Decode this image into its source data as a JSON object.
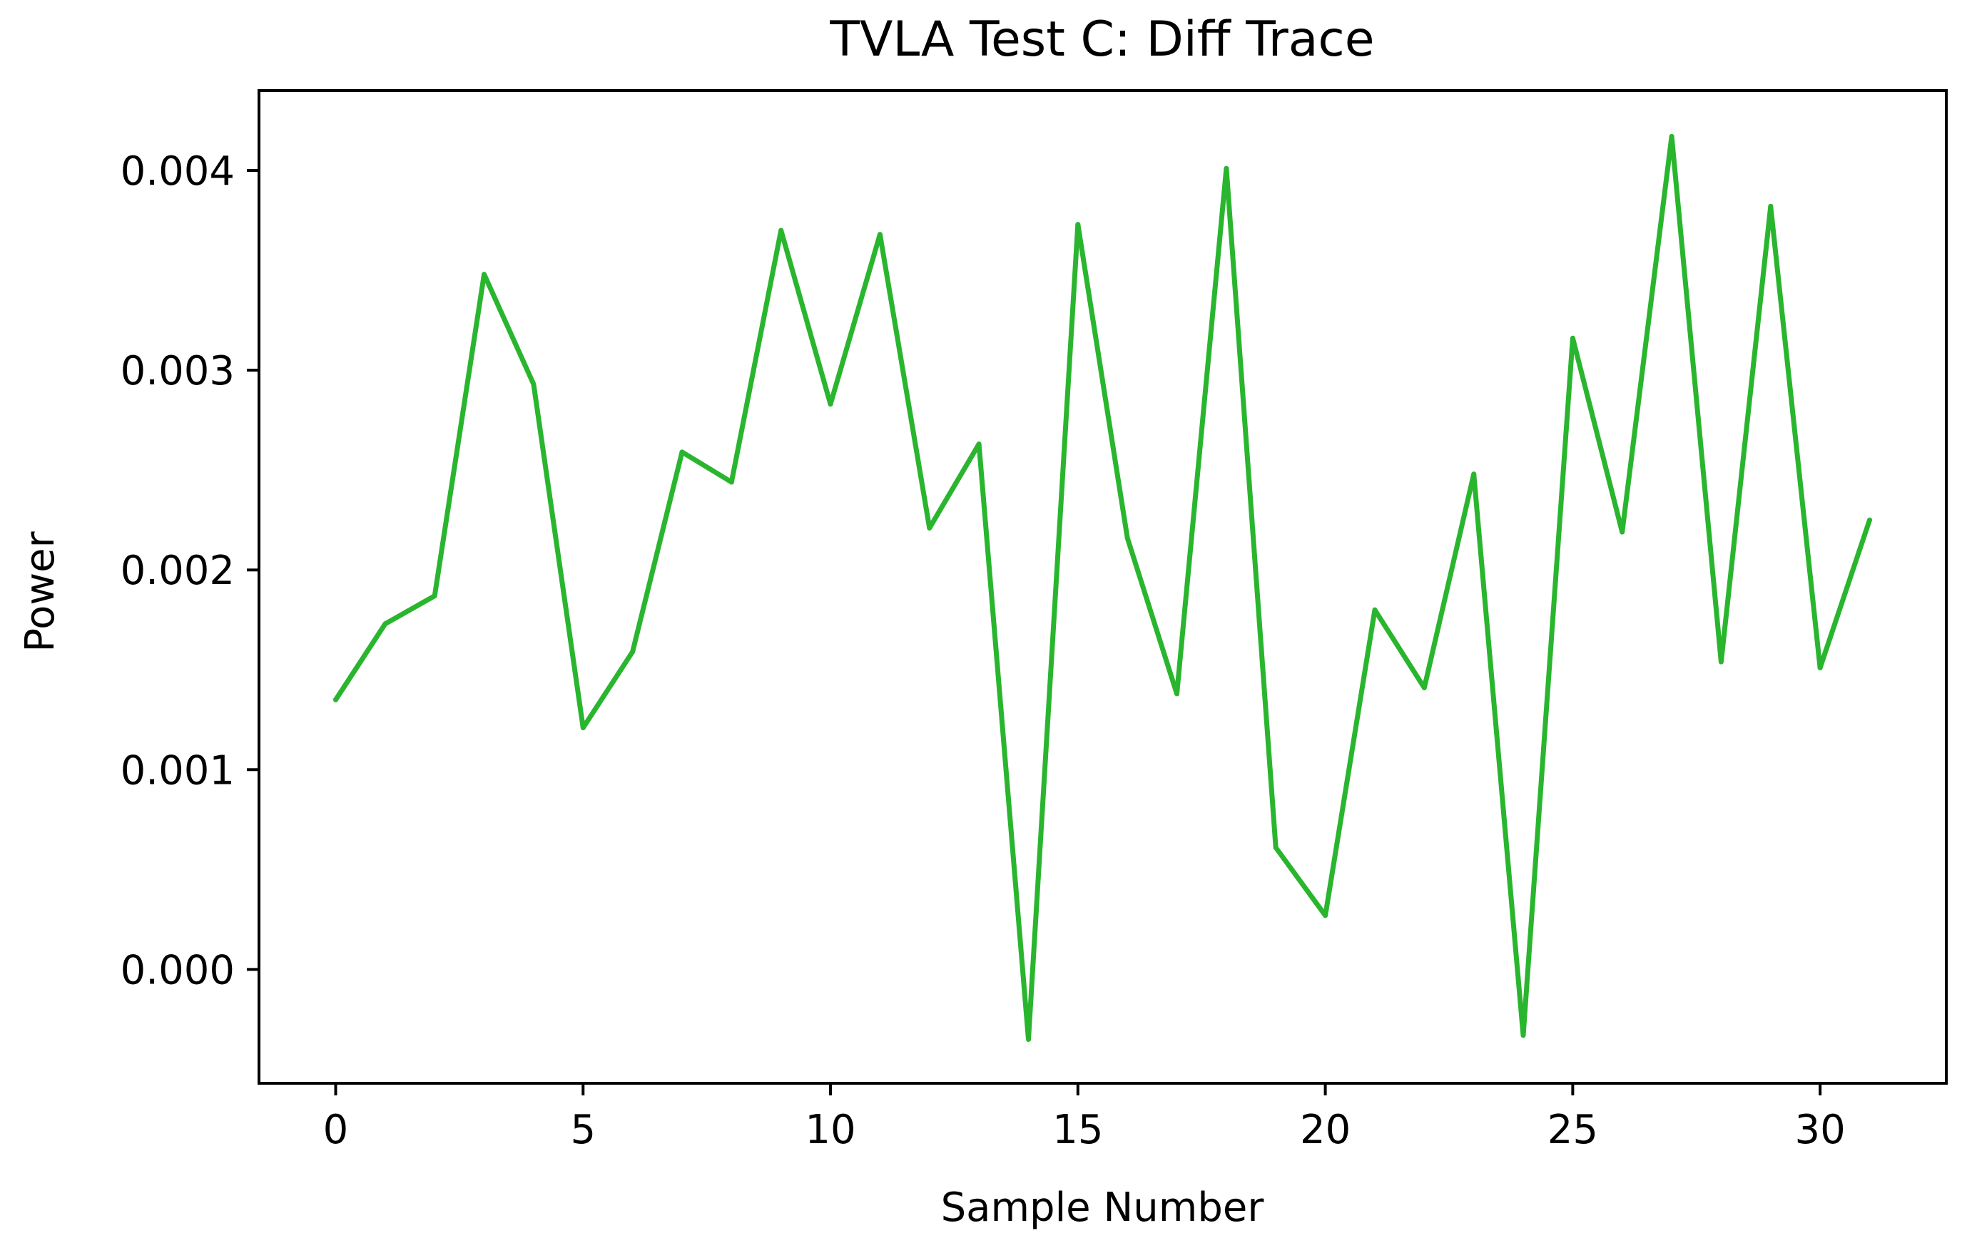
{
  "chart_data": {
    "type": "line",
    "title": "TVLA Test C: Diff Trace",
    "xlabel": "Sample Number",
    "ylabel": "Power",
    "xlim": [
      -1.55,
      32.55
    ],
    "ylim": [
      -0.00057,
      0.0044
    ],
    "x_ticks": [
      0,
      5,
      10,
      15,
      20,
      25,
      30
    ],
    "x_tick_labels": [
      "0",
      "5",
      "10",
      "15",
      "20",
      "25",
      "30"
    ],
    "y_ticks": [
      0.0,
      0.001,
      0.002,
      0.003,
      0.004
    ],
    "y_tick_labels": [
      "0.000",
      "0.001",
      "0.002",
      "0.003",
      "0.004"
    ],
    "grid": false,
    "series": [
      {
        "color": "#2ab52f",
        "x": [
          0,
          1,
          2,
          3,
          4,
          5,
          6,
          7,
          8,
          9,
          10,
          11,
          12,
          13,
          14,
          15,
          16,
          17,
          18,
          19,
          20,
          21,
          22,
          23,
          24,
          25,
          26,
          27,
          28,
          29,
          30,
          31
        ],
        "y": [
          0.00135,
          0.00173,
          0.00187,
          0.00348,
          0.00293,
          0.00121,
          0.00159,
          0.00259,
          0.00244,
          0.0037,
          0.00283,
          0.00368,
          0.00221,
          0.00263,
          -0.00035,
          0.00373,
          0.00216,
          0.00138,
          0.00401,
          0.00061,
          0.00027,
          0.0018,
          0.00141,
          0.00248,
          -0.00033,
          0.00316,
          0.00219,
          0.00417,
          0.00154,
          0.00382,
          0.00151,
          0.00225
        ]
      }
    ]
  }
}
